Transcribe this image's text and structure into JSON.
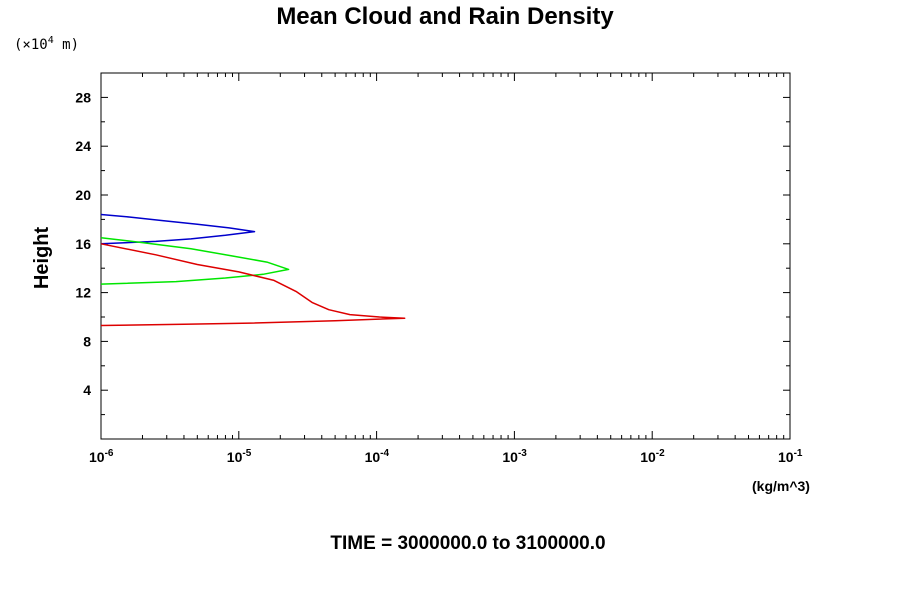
{
  "chart_data": {
    "type": "line",
    "title": "Mean Cloud and Rain Density",
    "y_unit_note_prefix": "(×10",
    "y_unit_note_exp": "4",
    "y_unit_note_suffix": " m)",
    "ylabel": "Height",
    "x_unit": "(kg/m^3)",
    "footer": "TIME = 3000000.0 to 3100000.0",
    "x_scale": "log",
    "xlim": [
      1e-06,
      0.1
    ],
    "ylim": [
      0,
      30
    ],
    "x_tick_labels": [
      {
        "value": 1e-06,
        "base": "10",
        "exp": "-6"
      },
      {
        "value": 1e-05,
        "base": "10",
        "exp": "-5"
      },
      {
        "value": 0.0001,
        "base": "10",
        "exp": "-4"
      },
      {
        "value": 0.001,
        "base": "10",
        "exp": "-3"
      },
      {
        "value": 0.01,
        "base": "10",
        "exp": "-2"
      },
      {
        "value": 0.1,
        "base": "10",
        "exp": "-1"
      }
    ],
    "y_tick_labels": [
      "4",
      "8",
      "12",
      "16",
      "20",
      "24",
      "28"
    ],
    "y_ticks": [
      4,
      8,
      12,
      16,
      20,
      24,
      28
    ],
    "grid": false,
    "series": [
      {
        "color": "#0000cc",
        "points": [
          [
            1e-06,
            18.4
          ],
          [
            1.6e-06,
            18.2
          ],
          [
            2.8e-06,
            17.9
          ],
          [
            5e-06,
            17.6
          ],
          [
            8.5e-06,
            17.3
          ],
          [
            1.3e-05,
            17.0
          ],
          [
            8e-06,
            16.7
          ],
          [
            4.5e-06,
            16.4
          ],
          [
            2.5e-06,
            16.2
          ],
          [
            1e-06,
            16.0
          ]
        ]
      },
      {
        "color": "#00e600",
        "points": [
          [
            1e-06,
            16.5
          ],
          [
            2e-06,
            16.1
          ],
          [
            4.5e-06,
            15.6
          ],
          [
            9e-06,
            15.0
          ],
          [
            1.6e-05,
            14.5
          ],
          [
            2.3e-05,
            13.9
          ],
          [
            1.5e-05,
            13.5
          ],
          [
            8e-06,
            13.2
          ],
          [
            3.5e-06,
            12.9
          ],
          [
            1e-06,
            12.7
          ]
        ]
      },
      {
        "color": "#dd0000",
        "points": [
          [
            1e-06,
            16.0
          ],
          [
            2.5e-06,
            15.1
          ],
          [
            5e-06,
            14.3
          ],
          [
            1e-05,
            13.7
          ],
          [
            1.8e-05,
            13.0
          ],
          [
            2.6e-05,
            12.1
          ],
          [
            3.4e-05,
            11.2
          ],
          [
            4.5e-05,
            10.6
          ],
          [
            6.4e-05,
            10.2
          ],
          [
            0.000105,
            10.0
          ],
          [
            0.00016,
            9.9
          ],
          [
            5e-05,
            9.7
          ],
          [
            1.2e-05,
            9.5
          ],
          [
            4e-06,
            9.4
          ],
          [
            1e-06,
            9.3
          ]
        ]
      }
    ]
  }
}
